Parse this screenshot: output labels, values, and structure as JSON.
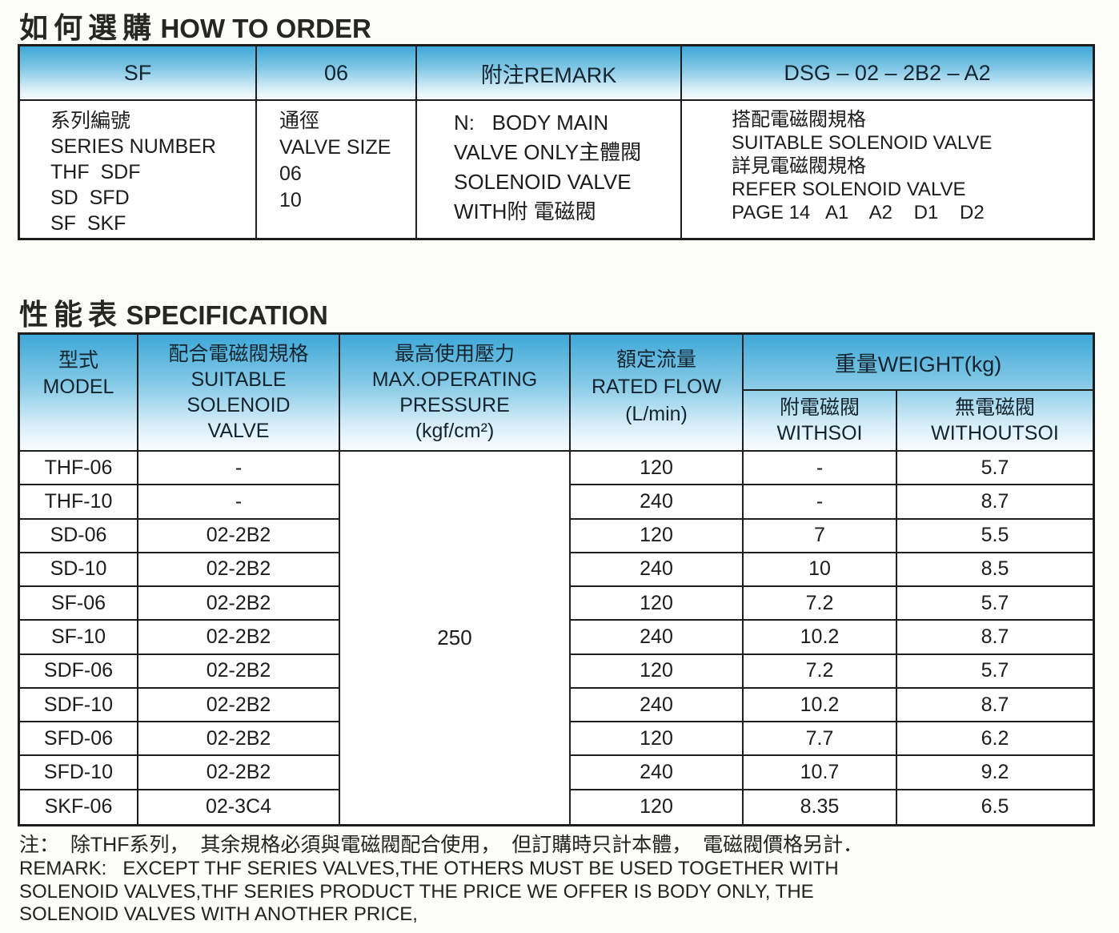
{
  "colors": {
    "c-border": "#1d1d1d",
    "c-text": "#1c1c1c",
    "c-bg": "#fcfcf9",
    "g-top": "#3ea8d8",
    "g-mid": "#85c9e6",
    "g-low": "#d8eef8",
    "g-btm": "#fbfeff"
  },
  "how_to_order": {
    "title_zh": "如何選購",
    "title_en": "HOW TO ORDER",
    "header": [
      "SF",
      "06",
      "附注REMARK",
      "DSG – 02 – 2B2 – A2"
    ],
    "body": [
      {
        "lines": [
          "系列編號",
          "SERIES NUMBER",
          "THF  SDF",
          "SD  SFD",
          "SF  SKF"
        ]
      },
      {
        "lines": [
          "通徑",
          "VALVE SIZE",
          "06",
          "10"
        ]
      },
      {
        "lines": [
          "N:   BODY MAIN",
          "VALVE ONLY主體閥",
          "SOLENOID VALVE",
          "WITH附 電磁閥"
        ]
      },
      {
        "lines": [
          "搭配電磁閥規格",
          "SUITABLE SOLENOID VALVE",
          "詳見電磁閥規格",
          "REFER SOLENOID VALVE",
          "PAGE 14   A1    A2    D1    D2"
        ]
      }
    ]
  },
  "specification": {
    "title_zh": "性能表",
    "title_en": "SPECIFICATION",
    "headers": {
      "model": [
        "型式",
        "MODEL"
      ],
      "suitable": [
        "配合電磁閥規格",
        "SUITABLE",
        "SOLENOID",
        "VALVE"
      ],
      "pressure": [
        "最高使用壓力",
        "MAX.OPERATING",
        "PRESSURE",
        "(kgf/cm²)"
      ],
      "flow": [
        "額定流量",
        "RATED FLOW",
        "(L/min)"
      ],
      "weight": "重量WEIGHT(kg)",
      "with_soi": [
        "附電磁閥",
        "WITHSOI"
      ],
      "without_soi": [
        "無電磁閥",
        "WITHOUTSOI"
      ]
    },
    "pressure_value": "250",
    "rows": [
      {
        "model": "THF-06",
        "suitable": "-",
        "flow": "120",
        "with_soi": "-",
        "without_soi": "5.7"
      },
      {
        "model": "THF-10",
        "suitable": "-",
        "flow": "240",
        "with_soi": "-",
        "without_soi": "8.7"
      },
      {
        "model": "SD-06",
        "suitable": "02-2B2",
        "flow": "120",
        "with_soi": "7",
        "without_soi": "5.5"
      },
      {
        "model": "SD-10",
        "suitable": "02-2B2",
        "flow": "240",
        "with_soi": "10",
        "without_soi": "8.5"
      },
      {
        "model": "SF-06",
        "suitable": "02-2B2",
        "flow": "120",
        "with_soi": "7.2",
        "without_soi": "5.7"
      },
      {
        "model": "SF-10",
        "suitable": "02-2B2",
        "flow": "240",
        "with_soi": "10.2",
        "without_soi": "8.7"
      },
      {
        "model": "SDF-06",
        "suitable": "02-2B2",
        "flow": "120",
        "with_soi": "7.2",
        "without_soi": "5.7"
      },
      {
        "model": "SDF-10",
        "suitable": "02-2B2",
        "flow": "240",
        "with_soi": "10.2",
        "without_soi": "8.7"
      },
      {
        "model": "SFD-06",
        "suitable": "02-2B2",
        "flow": "120",
        "with_soi": "7.7",
        "without_soi": "6.2"
      },
      {
        "model": "SFD-10",
        "suitable": "02-2B2",
        "flow": "240",
        "with_soi": "10.7",
        "without_soi": "9.2"
      },
      {
        "model": "SKF-06",
        "suitable": "02-3C4",
        "flow": "120",
        "with_soi": "8.35",
        "without_soi": "6.5"
      }
    ]
  },
  "remark": {
    "zh": "注：  除THF系列，  其余規格必須與電磁閥配合使用，  但訂購時只計本體，  電磁閥價格另計．",
    "en1": "REMARK:   EXCEPT THF SERIES VALVES,THE OTHERS MUST BE USED TOGETHER WITH",
    "en2": "SOLENOID VALVES,THF SERIES PRODUCT THE PRICE WE OFFER IS BODY ONLY, THE",
    "en3": "SOLENOID VALVES WITH ANOTHER PRICE,"
  }
}
